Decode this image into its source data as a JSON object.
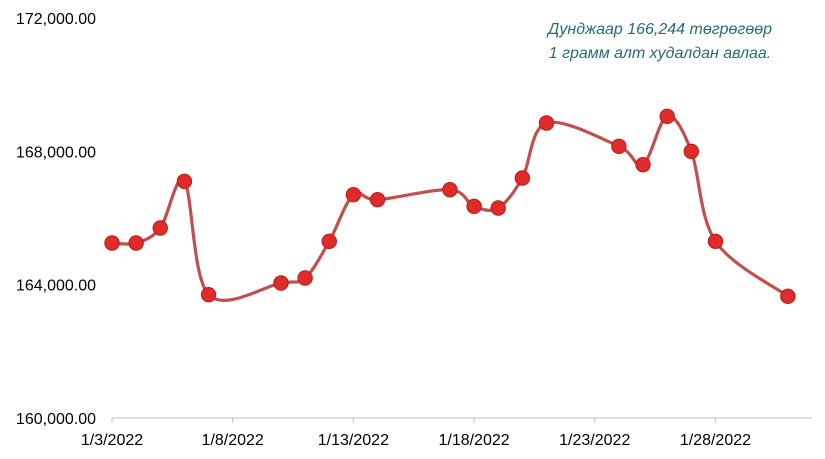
{
  "chart_data": {
    "type": "line",
    "title": "",
    "xlabel": "",
    "ylabel": "",
    "ylim": [
      160000,
      172000
    ],
    "y_ticks": [
      "160,000.00",
      "164,000.00",
      "168,000.00",
      "172,000.00"
    ],
    "y_tick_values": [
      160000,
      164000,
      168000,
      172000
    ],
    "x_range": [
      "2022-01-03",
      "2022-02-01"
    ],
    "x_ticks": [
      "1/3/2022",
      "1/8/2022",
      "1/13/2022",
      "1/18/2022",
      "1/23/2022",
      "1/28/2022"
    ],
    "x_tick_dates": [
      "2022-01-03",
      "2022-01-08",
      "2022-01-13",
      "2022-01-18",
      "2022-01-23",
      "2022-01-28"
    ],
    "grid": false,
    "smooth": true,
    "line_color": "#c0504d",
    "marker_color": "#e02b2b",
    "series": [
      {
        "points": [
          {
            "x": "2022-01-03",
            "y": 165250
          },
          {
            "x": "2022-01-04",
            "y": 165250
          },
          {
            "x": "2022-01-05",
            "y": 165700
          },
          {
            "x": "2022-01-06",
            "y": 167100
          },
          {
            "x": "2022-01-07",
            "y": 163700
          },
          {
            "x": "2022-01-10",
            "y": 164050
          },
          {
            "x": "2022-01-11",
            "y": 164200
          },
          {
            "x": "2022-01-12",
            "y": 165300
          },
          {
            "x": "2022-01-13",
            "y": 166700
          },
          {
            "x": "2022-01-14",
            "y": 166550
          },
          {
            "x": "2022-01-17",
            "y": 166850
          },
          {
            "x": "2022-01-18",
            "y": 166350
          },
          {
            "x": "2022-01-19",
            "y": 166300
          },
          {
            "x": "2022-01-20",
            "y": 167200
          },
          {
            "x": "2022-01-21",
            "y": 168850
          },
          {
            "x": "2022-01-24",
            "y": 168150
          },
          {
            "x": "2022-01-25",
            "y": 167600
          },
          {
            "x": "2022-01-26",
            "y": 169050
          },
          {
            "x": "2022-01-27",
            "y": 168000
          },
          {
            "x": "2022-01-28",
            "y": 165300
          },
          {
            "x": "2022-01-31",
            "y": 163650
          }
        ]
      }
    ],
    "annotation": {
      "line1": "Дунджаар 166,244 төгрөгөөр",
      "line2": "1 грамм алт худалдан авлаа.",
      "color": "#2a6a73"
    }
  }
}
